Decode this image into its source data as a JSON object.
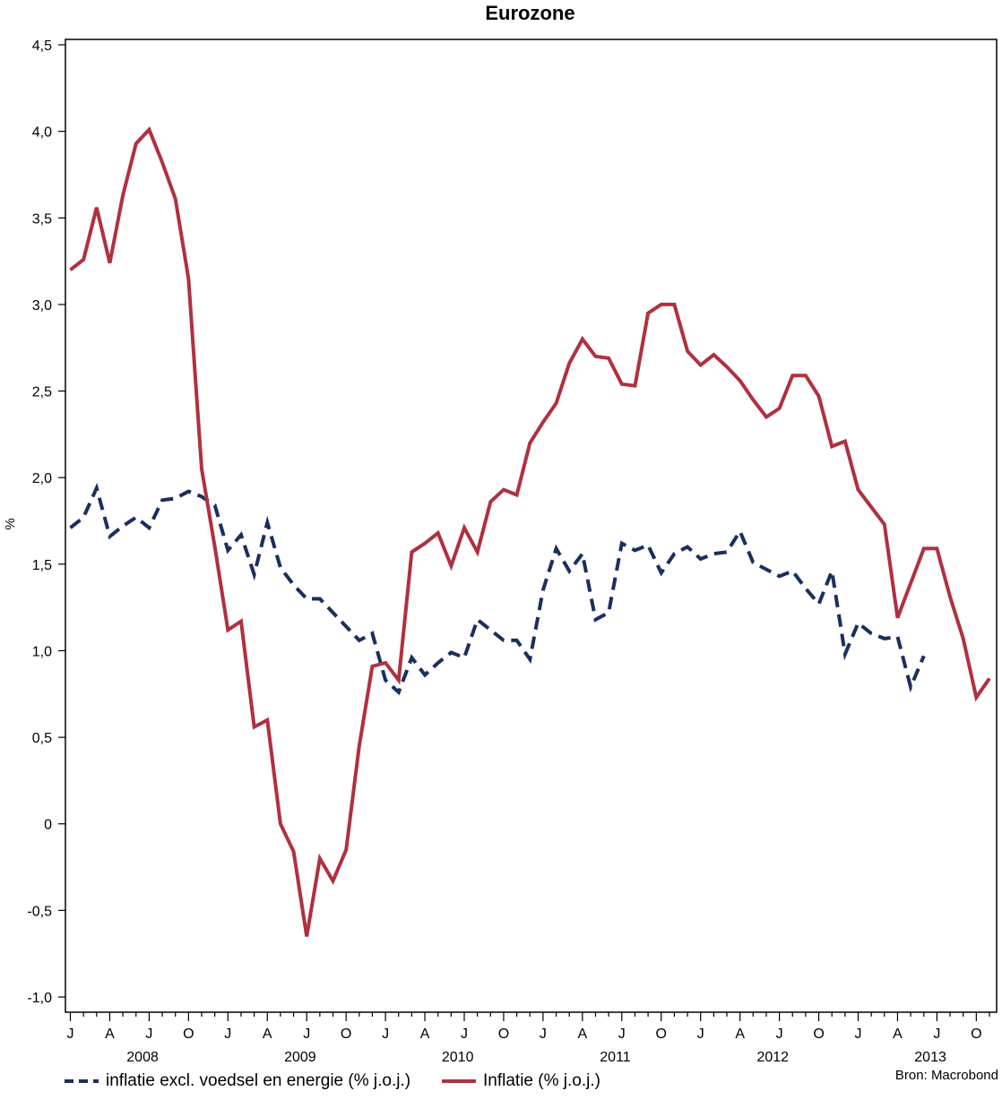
{
  "chart_data": {
    "type": "line",
    "title": "Eurozone",
    "ylabel": "%",
    "ylim": [
      -1.0,
      4.5
    ],
    "y_ticks": [
      -1.0,
      -0.5,
      0,
      0.5,
      1.0,
      1.5,
      2.0,
      2.5,
      3.0,
      3.5,
      4.0,
      4.5
    ],
    "y_tick_labels": [
      "-1,0",
      "-0,5",
      "0",
      "0,5",
      "1,0",
      "1,5",
      "2,0",
      "2,5",
      "3,0",
      "3,5",
      "4,0",
      "4,5"
    ],
    "x_start": "2008-01",
    "month_tick_labels": [
      "J",
      "A",
      "J",
      "O",
      "J",
      "A",
      "J",
      "O",
      "J",
      "A",
      "J",
      "O",
      "J",
      "A",
      "J",
      "O",
      "J",
      "A",
      "J",
      "O",
      "J",
      "A",
      "J",
      "O"
    ],
    "year_labels": [
      "2008",
      "2009",
      "2010",
      "2011",
      "2012",
      "2013"
    ],
    "grid": false,
    "legend_position": "bottom",
    "source": "Bron: Macrobond",
    "series": [
      {
        "name": "inflatie excl. voedsel en energie (% j.o.j.)",
        "style": "dashed",
        "color": "#1a2f5e",
        "values": [
          1.71,
          1.77,
          1.94,
          1.66,
          1.72,
          1.77,
          1.71,
          1.87,
          1.88,
          1.92,
          1.89,
          1.84,
          1.58,
          1.67,
          1.44,
          1.74,
          1.48,
          1.38,
          1.3,
          1.3,
          1.22,
          1.14,
          1.06,
          1.1,
          0.83,
          0.76,
          0.96,
          0.86,
          0.93,
          0.99,
          0.96,
          1.18,
          1.12,
          1.06,
          1.06,
          0.95,
          1.35,
          1.59,
          1.46,
          1.56,
          1.18,
          1.22,
          1.62,
          1.58,
          1.61,
          1.45,
          1.56,
          1.6,
          1.53,
          1.56,
          1.57,
          1.69,
          1.51,
          1.47,
          1.43,
          1.46,
          1.36,
          1.27,
          1.46,
          0.98,
          1.16,
          1.1,
          1.07,
          1.08,
          0.79,
          0.97
        ]
      },
      {
        "name": "Inflatie (% j.o.j.)",
        "style": "solid",
        "color": "#b03040",
        "values": [
          3.2,
          3.26,
          3.56,
          3.24,
          3.63,
          3.93,
          4.01,
          3.82,
          3.61,
          3.15,
          2.05,
          1.6,
          1.12,
          1.17,
          0.56,
          0.6,
          0.0,
          -0.16,
          -0.65,
          -0.2,
          -0.33,
          -0.15,
          0.45,
          0.91,
          0.93,
          0.83,
          1.57,
          1.62,
          1.68,
          1.49,
          1.71,
          1.57,
          1.86,
          1.93,
          1.9,
          2.2,
          2.32,
          2.43,
          2.66,
          2.8,
          2.7,
          2.69,
          2.54,
          2.53,
          2.95,
          3.0,
          3.0,
          2.73,
          2.65,
          2.71,
          2.64,
          2.56,
          2.45,
          2.35,
          2.4,
          2.59,
          2.59,
          2.47,
          2.18,
          2.21,
          1.93,
          1.83,
          1.73,
          1.19,
          1.39,
          1.59,
          1.59,
          1.31,
          1.07,
          0.73,
          0.84
        ]
      }
    ]
  }
}
